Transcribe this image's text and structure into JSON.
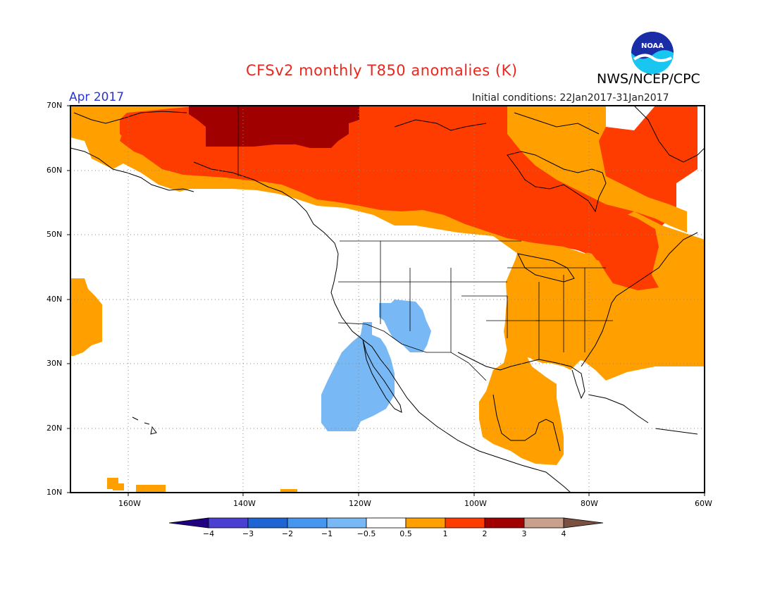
{
  "header": {
    "title": "CFSv2 monthly T850 anomalies (K)",
    "organization": "NWS/NCEP/CPC",
    "logo_text": "NOAA",
    "target_month": "Apr 2017",
    "initial_conditions": "Initial conditions: 22Jan2017-31Jan2017"
  },
  "map": {
    "region": "North America / NE Pacific",
    "lon_range": [
      -170,
      -60
    ],
    "lat_range": [
      10,
      70
    ],
    "lat_labels": [
      "70N",
      "60N",
      "50N",
      "40N",
      "30N",
      "20N",
      "10N"
    ],
    "lon_labels": [
      "160W",
      "140W",
      "120W",
      "100W",
      "80W",
      "60W"
    ],
    "gridlines": true
  },
  "legend": {
    "breaks": [
      "−4",
      "−3",
      "−2",
      "−1",
      "−0.5",
      "0.5",
      "1",
      "2",
      "3",
      "4"
    ],
    "colors": [
      "#200080",
      "#4a3fd0",
      "#1e64d2",
      "#4696f0",
      "#78b9f5",
      "#ffffff",
      "#ffa000",
      "#ff3c00",
      "#a00000",
      "#c8a08c",
      "#7a5040"
    ]
  }
}
